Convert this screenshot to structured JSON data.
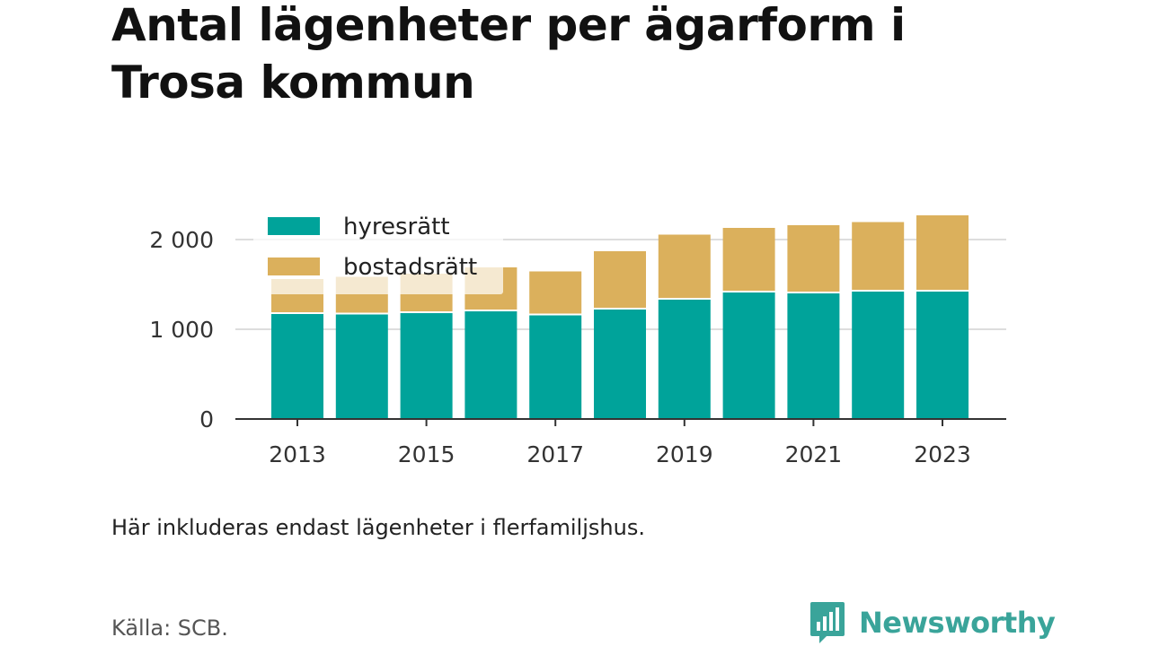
{
  "title": "Antal lägenheter per ägarform i Trosa kommun",
  "note": "Här inkluderas endast lägenheter i flerfamiljshus.",
  "source": "Källa: SCB.",
  "brand": {
    "name": "Newsworthy",
    "color": "#3aa49a",
    "icon": "newsworthy-logo-icon"
  },
  "chart_data": {
    "type": "bar",
    "stacked": true,
    "categories": [
      "2013",
      "2014",
      "2015",
      "2016",
      "2017",
      "2018",
      "2019",
      "2020",
      "2021",
      "2022",
      "2023"
    ],
    "x_tick_labels": [
      "2013",
      "",
      "2015",
      "",
      "2017",
      "",
      "2019",
      "",
      "2021",
      "",
      "2023"
    ],
    "series": [
      {
        "name": "hyresrätt",
        "color": "#00a39a",
        "values": [
          1170,
          1165,
          1180,
          1200,
          1155,
          1220,
          1330,
          1410,
          1400,
          1420,
          1420
        ]
      },
      {
        "name": "bostadsrätt",
        "color": "#dbb05c",
        "values": [
          390,
          420,
          440,
          490,
          490,
          650,
          725,
          720,
          760,
          775,
          850
        ]
      }
    ],
    "y_ticks": [
      0,
      1000,
      2000
    ],
    "y_tick_labels": [
      "0",
      "1 000",
      "2 000"
    ],
    "ylim": [
      0,
      2300
    ],
    "grid": true,
    "legend_position": "top-left"
  }
}
